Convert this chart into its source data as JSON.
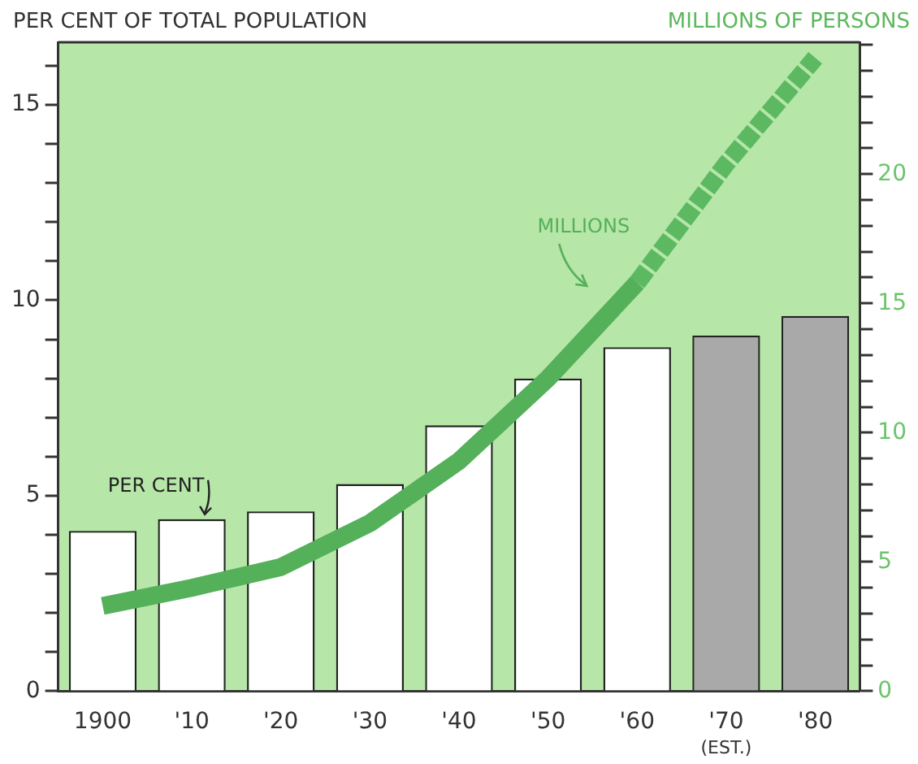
{
  "chart_data": {
    "type": "bar",
    "ylabel": "PER CENT OF TOTAL POPULATION",
    "y2label": "MILLIONS OF PERSONS",
    "categories": [
      "1900",
      "'10",
      "'20",
      "'30",
      "'40",
      "'50",
      "'60",
      "'70",
      "'80"
    ],
    "series": [
      {
        "name": "PER CENT",
        "colors": [
          "#ffffff",
          "#ffffff",
          "#ffffff",
          "#ffffff",
          "#ffffff",
          "#ffffff",
          "#ffffff",
          "#a9a9a9",
          "#a9a9a9"
        ],
        "values": [
          4.1,
          4.4,
          4.6,
          5.3,
          6.8,
          8.0,
          8.8,
          9.1,
          9.6
        ]
      },
      {
        "name": "MILLIONS",
        "type": "line",
        "axis": "y2",
        "color": "#55b05a",
        "line_style": "solid",
        "values": [
          3.3,
          4.0,
          4.8,
          6.5,
          8.9,
          12.1,
          15.8,
          null,
          null
        ]
      },
      {
        "type": "line",
        "axis": "y2",
        "color": "#5cb962",
        "line_style": "dashed",
        "values": [
          null,
          null,
          null,
          null,
          null,
          null,
          15.8,
          20.4,
          24.5
        ]
      }
    ],
    "annotations": [
      "(EST.)"
    ],
    "ylim": [
      0,
      16.6
    ],
    "yticks": [
      0,
      {
        "value": 1,
        "label": null
      },
      {
        "value": 2,
        "label": null
      },
      {
        "value": 3,
        "label": null
      },
      {
        "value": 4,
        "label": null
      },
      5,
      {
        "value": 6,
        "label": null
      },
      {
        "value": 7,
        "label": null
      },
      {
        "value": 8,
        "label": null
      },
      {
        "value": 9,
        "label": null
      },
      10,
      {
        "value": 11,
        "label": null
      },
      {
        "value": 12,
        "label": null
      },
      {
        "value": 13,
        "label": null
      },
      {
        "value": 14,
        "label": null
      },
      15,
      {
        "value": 16,
        "label": null
      }
    ],
    "y2lim": [
      0,
      25.1
    ],
    "y2ticks": [
      0,
      {
        "value": 1,
        "label": null
      },
      {
        "value": 2,
        "label": null
      },
      {
        "value": 3,
        "label": null
      },
      {
        "value": 4,
        "label": null
      },
      5,
      {
        "value": 6,
        "label": null
      },
      {
        "value": 7,
        "label": null
      },
      {
        "value": 8,
        "label": null
      },
      {
        "value": 9,
        "label": null
      },
      10,
      {
        "value": 11,
        "label": null
      },
      {
        "value": 12,
        "label": null
      },
      {
        "value": 13,
        "label": null
      },
      {
        "value": 14,
        "label": null
      },
      15,
      {
        "value": 16,
        "label": null
      },
      {
        "value": 17,
        "label": null
      },
      {
        "value": 18,
        "label": null
      },
      {
        "value": 19,
        "label": null
      },
      20,
      {
        "value": 21,
        "label": null
      },
      {
        "value": 22,
        "label": null
      },
      {
        "value": 23,
        "label": null
      },
      {
        "value": 24,
        "label": null
      },
      {
        "value": 25,
        "label": null
      }
    ],
    "grid": false,
    "legend": false
  }
}
